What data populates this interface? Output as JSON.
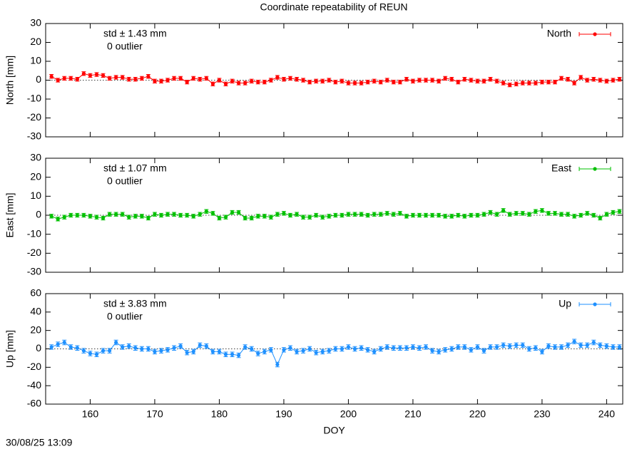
{
  "title": "Coordinate repeatability of REUN",
  "timestamp": "30/08/25 13:09",
  "chart_data": [
    {
      "type": "errorbar",
      "ylabel": "North [mm]",
      "std_label": "std ± 1.43 mm",
      "outlier_label": "0 outlier",
      "legend": "top-right",
      "xlim": [
        153.1,
        242.5
      ],
      "xticks": [
        160,
        170,
        180,
        190,
        200,
        210,
        220,
        230,
        240
      ],
      "ylim": [
        -30,
        30
      ],
      "yticks": [
        -30,
        -20,
        -10,
        0,
        10,
        20,
        30
      ],
      "x": [
        154,
        155,
        156,
        157,
        158,
        159,
        160,
        161,
        162,
        163,
        164,
        165,
        166,
        167,
        168,
        169,
        170,
        171,
        172,
        173,
        174,
        175,
        176,
        177,
        178,
        179,
        180,
        181,
        182,
        183,
        184,
        185,
        186,
        187,
        188,
        189,
        190,
        191,
        192,
        193,
        194,
        195,
        196,
        197,
        198,
        199,
        200,
        201,
        202,
        203,
        204,
        205,
        206,
        207,
        208,
        209,
        210,
        211,
        212,
        213,
        214,
        215,
        216,
        217,
        218,
        219,
        220,
        221,
        222,
        223,
        224,
        225,
        226,
        227,
        228,
        229,
        230,
        231,
        232,
        233,
        234,
        235,
        236,
        237,
        238,
        239,
        240,
        241,
        242
      ],
      "series": [
        {
          "name": "North",
          "color": "#ff0000",
          "error": 1,
          "values": [
            2,
            0,
            1,
            1,
            0.5,
            3.5,
            2.5,
            3,
            2.5,
            1,
            1.5,
            1.5,
            0.5,
            0.5,
            1,
            2,
            -0.5,
            -0.5,
            0,
            1,
            1,
            -1,
            1,
            0.5,
            1,
            -2,
            0,
            -2,
            -0.5,
            -1.5,
            -1.5,
            -0.5,
            -1,
            -1,
            0,
            1.5,
            0.5,
            1,
            0.5,
            0,
            -1,
            -0.5,
            -0.5,
            0,
            -1,
            -0.5,
            -1.5,
            -1.5,
            -1.5,
            -1,
            -0.5,
            -1,
            0,
            -1,
            -1,
            0.5,
            -0.5,
            0,
            0,
            0,
            -0.5,
            1,
            0.5,
            -1,
            0.5,
            0,
            -0.5,
            -0.5,
            0.5,
            -0.5,
            -1.5,
            -2.5,
            -2,
            -1.5,
            -1.5,
            -1.5,
            -1,
            -1,
            -1,
            1,
            0.5,
            -1.5,
            1.5,
            0,
            0.5,
            0,
            -0.5,
            0,
            0.5
          ]
        }
      ]
    },
    {
      "type": "errorbar",
      "ylabel": "East [mm]",
      "std_label": "std ± 1.07 mm",
      "outlier_label": "0 outlier",
      "legend": "top-right",
      "xlim": [
        153.1,
        242.5
      ],
      "xticks": [
        160,
        170,
        180,
        190,
        200,
        210,
        220,
        230,
        240
      ],
      "ylim": [
        -30,
        30
      ],
      "yticks": [
        -30,
        -20,
        -10,
        0,
        10,
        20,
        30
      ],
      "x": [
        154,
        155,
        156,
        157,
        158,
        159,
        160,
        161,
        162,
        163,
        164,
        165,
        166,
        167,
        168,
        169,
        170,
        171,
        172,
        173,
        174,
        175,
        176,
        177,
        178,
        179,
        180,
        181,
        182,
        183,
        184,
        185,
        186,
        187,
        188,
        189,
        190,
        191,
        192,
        193,
        194,
        195,
        196,
        197,
        198,
        199,
        200,
        201,
        202,
        203,
        204,
        205,
        206,
        207,
        208,
        209,
        210,
        211,
        212,
        213,
        214,
        215,
        216,
        217,
        218,
        219,
        220,
        221,
        222,
        223,
        224,
        225,
        226,
        227,
        228,
        229,
        230,
        231,
        232,
        233,
        234,
        235,
        236,
        237,
        238,
        239,
        240,
        241,
        242
      ],
      "series": [
        {
          "name": "East",
          "color": "#00c000",
          "error": 1,
          "values": [
            -0.5,
            -2,
            -1,
            0,
            0,
            0,
            -0.5,
            -1,
            -1.5,
            0.5,
            0.5,
            0.5,
            -1,
            -0.5,
            -0.5,
            -1.5,
            0.5,
            0,
            0.5,
            0.5,
            0,
            0,
            -0.5,
            0.5,
            2,
            1,
            -1.5,
            -1,
            1.5,
            1.5,
            -1.5,
            -1.5,
            -0.5,
            -0.5,
            -1,
            0.5,
            1,
            0,
            0.5,
            -1,
            -1,
            0,
            -1,
            -0.5,
            0,
            0,
            0.5,
            0.5,
            0.5,
            0,
            0.5,
            0.5,
            1,
            0.5,
            1,
            -0.5,
            0,
            0,
            0,
            0,
            0,
            -0.5,
            -0.5,
            0,
            -0.5,
            0,
            0,
            0.5,
            1.5,
            0.5,
            2.5,
            0.5,
            1,
            1,
            0.5,
            2,
            2.5,
            1,
            1,
            0.5,
            0.5,
            -0.5,
            0,
            1,
            0,
            -1.5,
            0.5,
            1.5,
            2
          ]
        }
      ]
    },
    {
      "type": "errorbar",
      "ylabel": "Up [mm]",
      "xlabel": "DOY",
      "std_label": "std ± 3.83 mm",
      "outlier_label": "0 outlier",
      "legend": "top-right",
      "xlim": [
        153.1,
        242.5
      ],
      "xticks": [
        160,
        170,
        180,
        190,
        200,
        210,
        220,
        230,
        240
      ],
      "ylim": [
        -60,
        60
      ],
      "yticks": [
        -60,
        -40,
        -20,
        0,
        20,
        40,
        60
      ],
      "x": [
        154,
        155,
        156,
        157,
        158,
        159,
        160,
        161,
        162,
        163,
        164,
        165,
        166,
        167,
        168,
        169,
        170,
        171,
        172,
        173,
        174,
        175,
        176,
        177,
        178,
        179,
        180,
        181,
        182,
        183,
        184,
        185,
        186,
        187,
        188,
        189,
        190,
        191,
        192,
        193,
        194,
        195,
        196,
        197,
        198,
        199,
        200,
        201,
        202,
        203,
        204,
        205,
        206,
        207,
        208,
        209,
        210,
        211,
        212,
        213,
        214,
        215,
        216,
        217,
        218,
        219,
        220,
        221,
        222,
        223,
        224,
        225,
        226,
        227,
        228,
        229,
        230,
        231,
        232,
        233,
        234,
        235,
        236,
        237,
        238,
        239,
        240,
        241,
        242
      ],
      "series": [
        {
          "name": "Up",
          "color": "#1e90ff",
          "error": 2.5,
          "values": [
            2,
            5,
            7,
            2,
            1,
            -2,
            -5,
            -6,
            -2,
            -2,
            7,
            2,
            3,
            1,
            0,
            0,
            -3,
            -2,
            -1,
            1,
            3,
            -4,
            -3,
            4,
            3,
            -3,
            -3,
            -6,
            -6,
            -7,
            2,
            0,
            -5,
            -3,
            -1,
            -17,
            -1,
            1,
            -3,
            -2,
            0,
            -4,
            -3,
            -2,
            0,
            0,
            2,
            0,
            1,
            -1,
            -3,
            0,
            2,
            1,
            1,
            1,
            2,
            1,
            2,
            -2,
            -3,
            -1,
            0,
            2,
            2,
            -1,
            2,
            -2,
            2,
            2,
            4,
            3,
            4,
            4,
            0,
            1,
            -3,
            3,
            2,
            2,
            4,
            8,
            4,
            4,
            7,
            4,
            3,
            2,
            2
          ]
        }
      ]
    }
  ]
}
